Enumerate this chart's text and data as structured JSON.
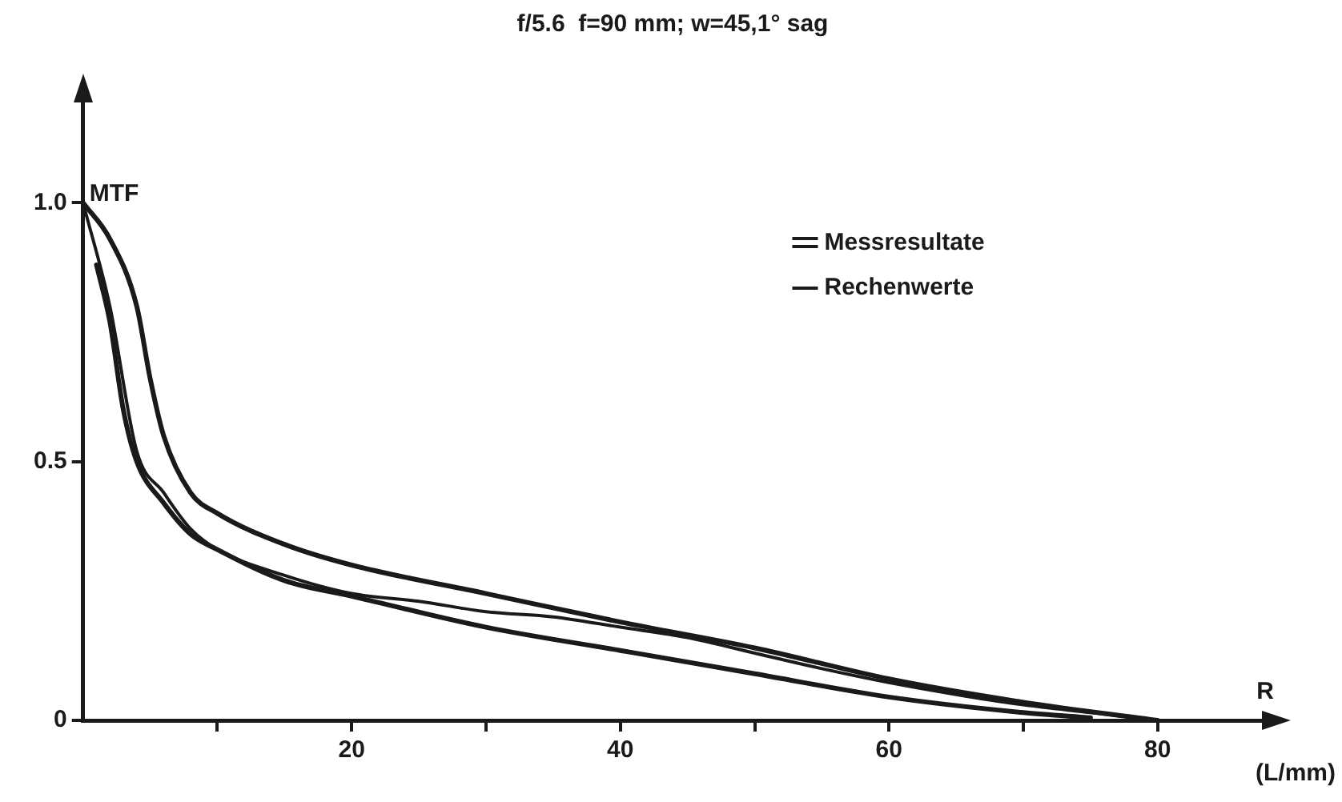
{
  "chart_data": {
    "type": "line",
    "title": "f/5.6  f=90 mm; w=45,1° sag",
    "xlabel": "R",
    "ylabel": "MTF",
    "annotations": [
      "(L/mm)"
    ],
    "xlim": [
      0,
      88
    ],
    "ylim": [
      0,
      1.2
    ],
    "xticks": [
      {
        "value": 10,
        "label": null
      },
      20,
      {
        "value": 30,
        "label": null
      },
      40,
      {
        "value": 50,
        "label": null
      },
      60,
      {
        "value": 70,
        "label": null
      },
      80
    ],
    "yticks": [
      0,
      {
        "value": 0.5,
        "label": "0.5"
      },
      {
        "value": 1,
        "label": "1.0"
      }
    ],
    "grid": false,
    "legend": "top right",
    "series": [
      {
        "name": "Messresultate",
        "color": "#1a1a1a",
        "x": [
          0,
          2,
          4,
          5,
          6,
          8,
          10,
          15,
          20,
          30,
          40,
          50,
          60,
          70,
          80
        ],
        "values": [
          1,
          0.93,
          0.8,
          0.66,
          0.55,
          0.44,
          0.4,
          0.34,
          0.3,
          0.245,
          0.19,
          0.14,
          0.08,
          0.035,
          0
        ]
      },
      {
        "color": "#1a1a1a",
        "x": [
          1,
          2,
          3,
          4,
          6,
          8,
          10,
          15,
          20,
          30,
          40,
          50,
          60,
          70,
          75
        ],
        "values": [
          0.88,
          0.77,
          0.6,
          0.5,
          0.42,
          0.36,
          0.33,
          0.27,
          0.24,
          0.18,
          0.135,
          0.09,
          0.045,
          0.015,
          0.005
        ]
      },
      {
        "name": "Rechenwerte",
        "color": "#1a1a1a",
        "x": [
          0,
          2,
          4,
          6,
          8,
          10,
          15,
          20,
          25,
          30,
          35,
          40,
          45,
          50,
          55,
          60,
          65,
          70,
          75,
          80
        ],
        "values": [
          1,
          0.8,
          0.52,
          0.44,
          0.37,
          0.33,
          0.28,
          0.245,
          0.23,
          0.21,
          0.2,
          0.18,
          0.16,
          0.13,
          0.1,
          0.073,
          0.05,
          0.03,
          0.015,
          0
        ]
      }
    ]
  }
}
